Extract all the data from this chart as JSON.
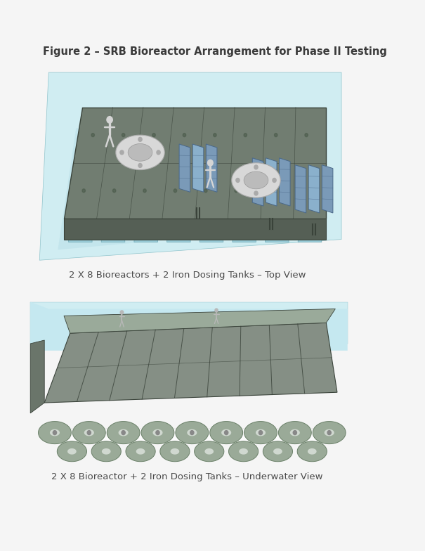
{
  "title": "Figure 2 – SRB Bioreactor Arrangement for Phase II Testing",
  "caption_top": "2 X 8 Bioreactors + 2 Iron Dosing Tanks – Top View",
  "caption_bottom": "2 X 8 Bioreactor + 2 Iron Dosing Tanks – Underwater View",
  "bg_color": "#f5f5f5",
  "title_fontsize": 10.5,
  "caption_fontsize": 9.5,
  "title_color": "#3a3a3a",
  "caption_color": "#4a4a4a",
  "water_color_light": "#d0edf2",
  "water_color_mid": "#b8dfe8",
  "water_color_deep": "#9accd8",
  "platform_top": "#717d71",
  "platform_side": "#555f55",
  "platform_edge": "#3a433a",
  "solar_blue": "#7a9ab8",
  "solar_dark": "#4a6888",
  "tank_white": "#d8d8d8",
  "tank_gray": "#aaaaaa",
  "person_color": "#d8d8d8",
  "uw_body_color": "#858f85",
  "uw_side_color": "#6a756a",
  "uw_top_color": "#9aaa9a",
  "module_color": "#9aaa98",
  "module_edge": "#6a8068",
  "figure_width": 6.05,
  "figure_height": 7.84,
  "dpi": 100
}
